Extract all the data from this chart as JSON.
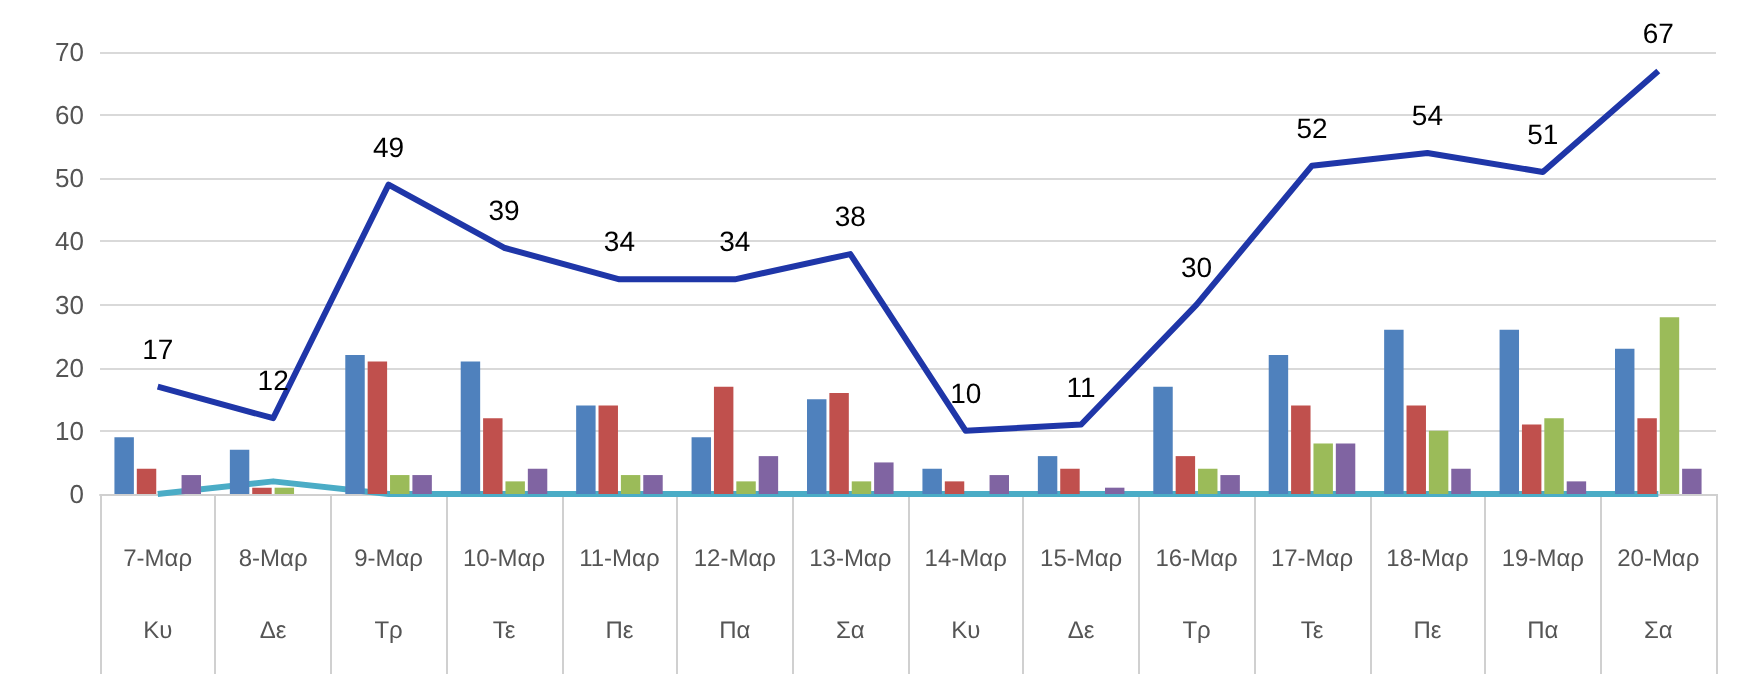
{
  "chart_data": {
    "type": "bar",
    "categories": [
      "7-Μαρ\nΚυ",
      "8-Μαρ\nΔε",
      "9-Μαρ\nΤρ",
      "10-Μαρ\nΤε",
      "11-Μαρ\nΠε",
      "12-Μαρ\nΠα",
      "13-Μαρ\nΣα",
      "14-Μαρ\nΚυ",
      "15-Μαρ\nΔε",
      "16-Μαρ\nΤρ",
      "17-Μαρ\nΤε",
      "18-Μαρ\nΠε",
      "19-Μαρ\nΠα",
      "20-Μαρ\nΣα"
    ],
    "series": [
      {
        "color": "#4f81bd",
        "values": [
          9,
          7,
          22,
          21,
          14,
          9,
          15,
          4,
          6,
          17,
          22,
          26,
          26,
          23
        ]
      },
      {
        "color": "#c0504d",
        "values": [
          4,
          1,
          21,
          12,
          14,
          17,
          16,
          2,
          4,
          6,
          14,
          14,
          11,
          12
        ]
      },
      {
        "color": "#9bbb59",
        "values": [
          0,
          1,
          3,
          2,
          3,
          2,
          2,
          0,
          0,
          4,
          8,
          10,
          12,
          28
        ]
      },
      {
        "color": "#8064a2",
        "values": [
          3,
          0,
          3,
          4,
          3,
          6,
          5,
          3,
          1,
          3,
          8,
          4,
          2,
          4
        ]
      },
      {
        "type": "line",
        "color": "#4bacc6",
        "values": [
          0,
          2,
          0,
          0,
          0,
          0,
          0,
          0,
          0,
          0,
          0,
          0,
          0,
          0
        ]
      },
      {
        "type": "line",
        "color": "#1f36a8",
        "values": [
          17,
          12,
          49,
          39,
          34,
          34,
          38,
          10,
          11,
          30,
          52,
          54,
          51,
          67
        ],
        "value_labels": [
          "17",
          "12",
          "49",
          "39",
          "34",
          "34",
          "38",
          "10",
          "11",
          "30",
          "52",
          "54",
          "51",
          "67"
        ]
      }
    ],
    "ylim": [
      0,
      70
    ],
    "yticks": [
      0,
      10,
      20,
      30,
      40,
      50,
      60,
      70
    ],
    "grid": "y",
    "marker": "none"
  }
}
